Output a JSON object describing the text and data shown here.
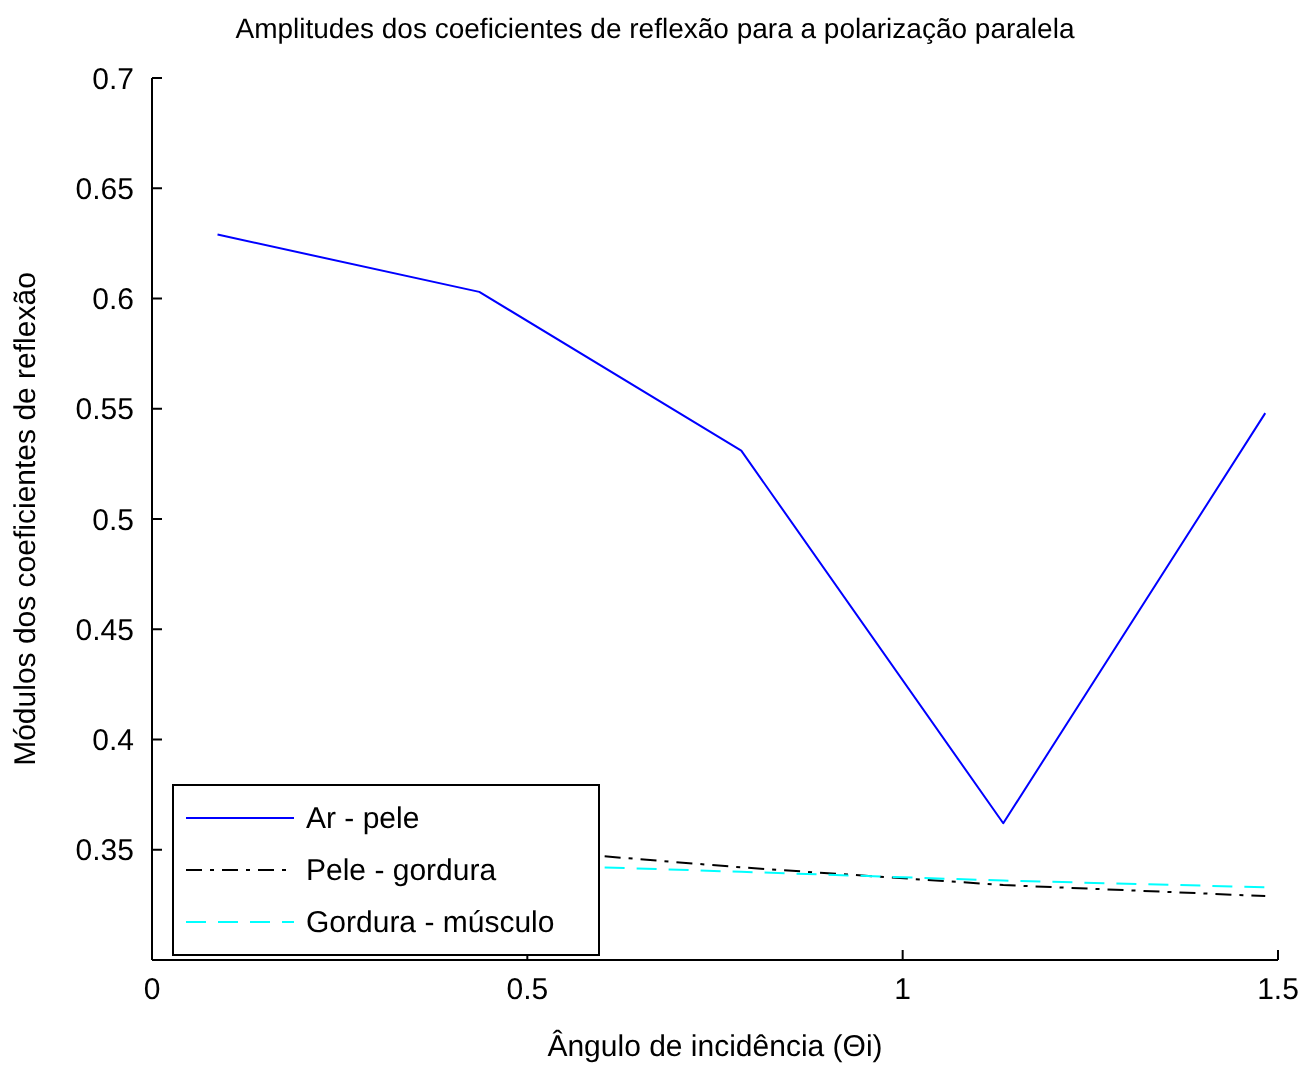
{
  "chart_data": {
    "type": "line",
    "title": "Amplitudes dos coeficientes de reflexão para a polarização paralela",
    "xlabel": "Ângulo de incidência (Θi)",
    "ylabel": "Módulos dos coeficientes de reflexão",
    "xlim": [
      0,
      1.5
    ],
    "xticks": [
      0,
      0.5,
      1,
      1.5
    ],
    "ylim": [
      0.3,
      0.7
    ],
    "yticks": [
      0.35,
      0.4,
      0.45,
      0.5,
      0.55,
      0.6,
      0.65,
      0.7
    ],
    "legend": "bottom left",
    "grid": false,
    "marker": "none",
    "series": [
      {
        "name": "Ar - pele",
        "color": "#0000ff",
        "line_style": "solid",
        "x": [
          0.0873,
          0.436,
          0.785,
          1.134,
          1.483
        ],
        "values": [
          0.629,
          0.603,
          0.531,
          0.362,
          0.548
        ]
      },
      {
        "name": "Pele - gordura",
        "color": "#000000",
        "line_style": "dashdot",
        "x": [
          0.603,
          0.785,
          1.134,
          1.483
        ],
        "values": [
          0.347,
          0.342,
          0.334,
          0.329
        ]
      },
      {
        "name": "Gordura - músculo",
        "color": "#00ffff",
        "line_style": "dashed",
        "x": [
          0.603,
          0.785,
          1.134,
          1.483
        ],
        "values": [
          0.342,
          0.34,
          0.336,
          0.333
        ]
      }
    ]
  }
}
